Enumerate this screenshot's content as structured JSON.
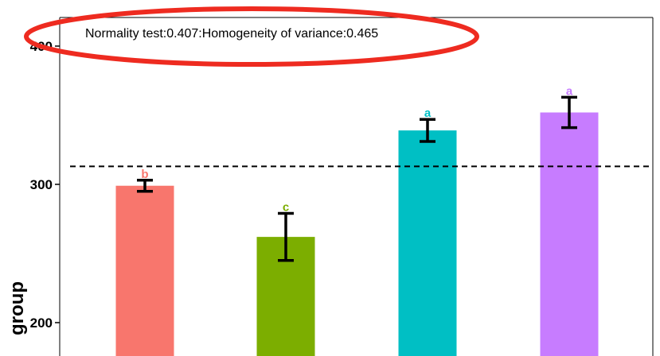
{
  "chart_data": {
    "type": "bar",
    "title": "",
    "xlabel": "",
    "ylabel": "group",
    "annotation": "Normality test:0.407:Homogeneity of variance:0.465",
    "categories": [
      "",
      "",
      "",
      ""
    ],
    "values": [
      299,
      262,
      339,
      352
    ],
    "error_low": [
      295,
      245,
      331,
      341
    ],
    "error_high": [
      303,
      279,
      347,
      363
    ],
    "significance_letters": [
      "b",
      "c",
      "a",
      "a"
    ],
    "colors": [
      "#F8766D",
      "#7CAE00",
      "#00BFC4",
      "#C77CFF"
    ],
    "reference_line": {
      "value": 313,
      "style": "dashed"
    },
    "y_ticks": [
      200,
      300,
      400
    ],
    "ylim": [
      170,
      420
    ],
    "grid": false,
    "highlight": {
      "shape": "ellipse",
      "color": "#EE2B20",
      "around": "annotation"
    }
  }
}
